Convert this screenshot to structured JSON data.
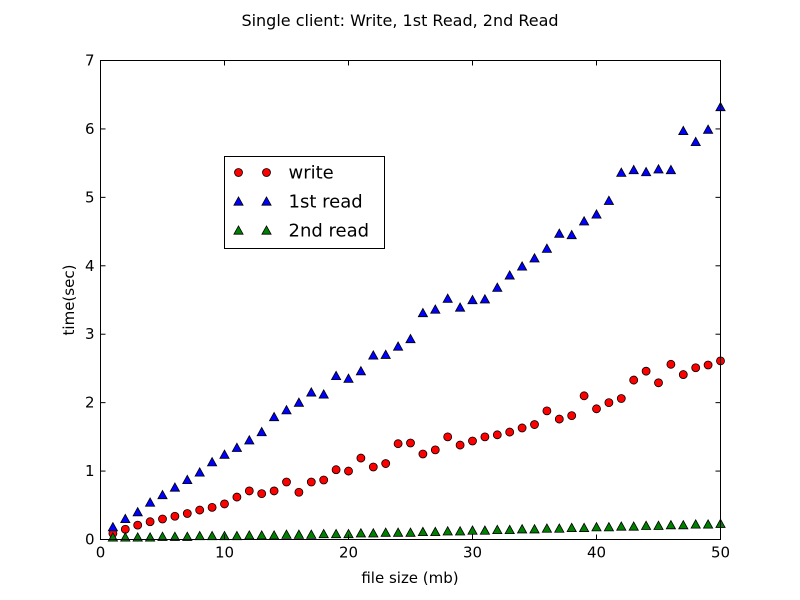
{
  "chart_data": {
    "type": "scatter",
    "title": "Single client:  Write,  1st Read,  2nd Read",
    "xlabel": "file size (mb)",
    "ylabel": "time(sec)",
    "xlim": [
      0,
      50
    ],
    "ylim": [
      0,
      7
    ],
    "xticks": [
      0,
      10,
      20,
      30,
      40,
      50
    ],
    "yticks": [
      0,
      1,
      2,
      3,
      4,
      5,
      6,
      7
    ],
    "grid": false,
    "legend_position": "upper-left-center",
    "x": [
      1,
      2,
      3,
      4,
      5,
      6,
      7,
      8,
      9,
      10,
      11,
      12,
      13,
      14,
      15,
      16,
      17,
      18,
      19,
      20,
      21,
      22,
      23,
      24,
      25,
      26,
      27,
      28,
      29,
      30,
      31,
      32,
      33,
      34,
      35,
      36,
      37,
      38,
      39,
      40,
      41,
      42,
      43,
      44,
      45,
      46,
      47,
      48,
      49,
      50
    ],
    "series": [
      {
        "name": "write",
        "marker": "circle",
        "color": "#ff0000",
        "values": [
          0.09,
          0.15,
          0.21,
          0.26,
          0.3,
          0.34,
          0.38,
          0.43,
          0.47,
          0.52,
          0.62,
          0.71,
          0.67,
          0.71,
          0.84,
          0.69,
          0.84,
          0.87,
          1.02,
          1.0,
          1.19,
          1.06,
          1.11,
          1.4,
          1.41,
          1.25,
          1.31,
          1.5,
          1.38,
          1.44,
          1.5,
          1.53,
          1.57,
          1.63,
          1.68,
          1.88,
          1.76,
          1.81,
          2.1,
          1.91,
          2.0,
          2.06,
          2.33,
          2.46,
          2.29,
          2.56,
          2.41,
          2.51,
          2.55,
          2.61
        ]
      },
      {
        "name": "1st read",
        "marker": "triangle-up",
        "color": "#0000ff",
        "values": [
          0.18,
          0.3,
          0.4,
          0.54,
          0.65,
          0.76,
          0.87,
          0.98,
          1.13,
          1.24,
          1.34,
          1.45,
          1.57,
          1.79,
          1.89,
          2.0,
          2.15,
          2.12,
          2.39,
          2.35,
          2.46,
          2.69,
          2.7,
          2.82,
          2.93,
          3.31,
          3.36,
          3.52,
          3.39,
          3.5,
          3.51,
          3.68,
          3.86,
          3.99,
          4.11,
          4.25,
          4.47,
          4.45,
          4.65,
          4.75,
          4.95,
          5.36,
          5.4,
          5.37,
          5.41,
          5.4,
          5.97,
          5.81,
          5.99,
          6.32
        ]
      },
      {
        "name": "2nd read",
        "marker": "triangle-up",
        "color": "#008000",
        "values": [
          0.03,
          0.03,
          0.03,
          0.03,
          0.04,
          0.04,
          0.04,
          0.05,
          0.05,
          0.05,
          0.05,
          0.06,
          0.06,
          0.06,
          0.07,
          0.07,
          0.07,
          0.08,
          0.08,
          0.08,
          0.09,
          0.09,
          0.1,
          0.1,
          0.1,
          0.11,
          0.11,
          0.12,
          0.12,
          0.13,
          0.13,
          0.14,
          0.14,
          0.15,
          0.15,
          0.16,
          0.16,
          0.17,
          0.17,
          0.18,
          0.18,
          0.19,
          0.19,
          0.2,
          0.2,
          0.21,
          0.21,
          0.22,
          0.22,
          0.23
        ]
      }
    ]
  }
}
